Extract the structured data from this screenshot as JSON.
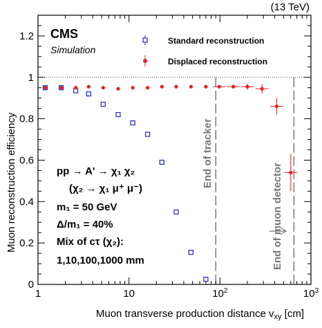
{
  "header": {
    "energy": "(13 TeV)",
    "cms": "CMS",
    "sim": "Simulation"
  },
  "legend": {
    "standard": "Standard reconstruction",
    "displaced": "Displaced reconstruction"
  },
  "info": {
    "line1": "pp → A' → χ₁ χ₂",
    "line2": "(χ₂ → χ₁ μ⁺ μ⁻)",
    "line3": "m₁ = 50 GeV",
    "line4": "Δ/m₁ = 40%",
    "line5": "Mix of cτ (χ₂):",
    "line6": "1,10,100,1000 mm"
  },
  "annotations": {
    "tracker": "End of tracker",
    "muon": "End of muon detector"
  },
  "chart_data": {
    "type": "scatter",
    "xlabel": "Muon transverse production distance v_xy [cm]",
    "ylabel": "Muon reconstruction efficiency",
    "xscale": "log",
    "xlim": [
      1,
      1000
    ],
    "ylim": [
      0,
      1.3
    ],
    "x_ticks": [
      {
        "value": 1,
        "label": "1"
      },
      {
        "value": 10,
        "label": "10"
      },
      {
        "value": 100,
        "label": "10²"
      },
      {
        "value": 1000,
        "label": "10³"
      }
    ],
    "y_ticks": [
      {
        "value": 0,
        "label": "0"
      },
      {
        "value": 0.2,
        "label": "0.2"
      },
      {
        "value": 0.4,
        "label": "0.4"
      },
      {
        "value": 0.6,
        "label": "0.6"
      },
      {
        "value": 0.8,
        "label": "0.8"
      },
      {
        "value": 1,
        "label": "1"
      },
      {
        "value": 1.2,
        "label": "1.2"
      }
    ],
    "reference_line": 1.0,
    "vertical_lines": [
      {
        "x": 90,
        "label": "End of tracker"
      },
      {
        "x": 650,
        "label": "End of muon detector"
      }
    ],
    "series": [
      {
        "name": "Standard reconstruction",
        "marker": "open-square",
        "color": "#2222cc",
        "x": [
          1.2,
          1.8,
          2.6,
          3.6,
          5.2,
          7.6,
          11,
          16,
          23,
          33,
          48,
          70
        ],
        "y": [
          0.95,
          0.95,
          0.935,
          0.92,
          0.87,
          0.82,
          0.78,
          0.725,
          0.59,
          0.35,
          0.155,
          0.025
        ]
      },
      {
        "name": "Displaced reconstruction",
        "marker": "filled-circle",
        "color": "#e8201f",
        "x": [
          1.2,
          1.8,
          2.6,
          3.6,
          5.2,
          7.6,
          11,
          16,
          23,
          33,
          48,
          70,
          98,
          140,
          200,
          290,
          420,
          600
        ],
        "y": [
          0.95,
          0.95,
          0.95,
          0.955,
          0.95,
          0.945,
          0.95,
          0.95,
          0.955,
          0.955,
          0.955,
          0.955,
          0.955,
          0.955,
          0.955,
          0.945,
          0.86,
          0.54
        ],
        "yerr": [
          0,
          0,
          0,
          0,
          0,
          0,
          0,
          0,
          0,
          0,
          0,
          0,
          0.008,
          0.01,
          0.015,
          0.022,
          0.04,
          0.09
        ]
      }
    ]
  }
}
